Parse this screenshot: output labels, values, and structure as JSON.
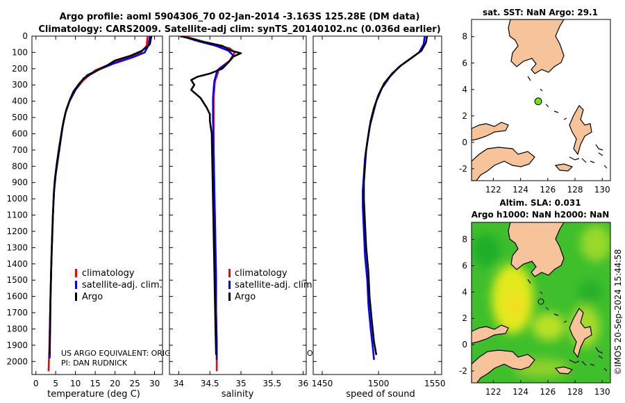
{
  "header": {
    "line1": "Argo profile: aoml 5904306_70 02-Jan-2014 -3.163S 125.28E (DM data)",
    "line2": "Climatology: CARS2009. Satellite-adj clim: synTS_20140102.nc (0.036d earlier)"
  },
  "colors": {
    "climatology": "#ff0000",
    "satellite": "#0000ff",
    "argo": "#000000",
    "land": "#f7c39a",
    "marker": "#77dd22"
  },
  "legend": {
    "climatology": "climatology",
    "satellite": "satellite-adj. clim.",
    "argo": "Argo"
  },
  "notes": {
    "line1": "US ARGO EQUIVALENT: ORIGI",
    "line2": "PI: DAN RUDNICK",
    "frag": "O"
  },
  "stamp": "©IMOS 20-Sep-2024 15:44:58",
  "chart_data": [
    {
      "type": "line",
      "id": "temperature",
      "xlabel": "temperature (deg C)",
      "ylabel": "",
      "xlim": [
        -1,
        32
      ],
      "ylim": [
        2080,
        0
      ],
      "xticks": [
        0,
        5,
        10,
        15,
        20,
        25,
        30
      ],
      "yticks": [
        0,
        100,
        200,
        300,
        400,
        500,
        600,
        700,
        800,
        900,
        1000,
        1100,
        1200,
        1300,
        1400,
        1500,
        1600,
        1700,
        1800,
        1900,
        2000
      ],
      "series": [
        {
          "name": "climatology",
          "color": "#ff0000",
          "points": [
            [
              28.2,
              0
            ],
            [
              28.0,
              60
            ],
            [
              26.5,
              100
            ],
            [
              24,
              130
            ],
            [
              19,
              170
            ],
            [
              15,
              210
            ],
            [
              12,
              270
            ],
            [
              10,
              330
            ],
            [
              8.5,
              400
            ],
            [
              7.5,
              470
            ],
            [
              6.8,
              550
            ],
            [
              6.2,
              650
            ],
            [
              5.6,
              750
            ],
            [
              5.0,
              850
            ],
            [
              4.6,
              950
            ],
            [
              4.3,
              1100
            ],
            [
              4.0,
              1300
            ],
            [
              3.8,
              1500
            ],
            [
              3.6,
              1700
            ],
            [
              3.4,
              1900
            ],
            [
              3.2,
              2060
            ]
          ]
        },
        {
          "name": "satellite-adj. clim.",
          "color": "#0000ff",
          "points": [
            [
              28.8,
              0
            ],
            [
              28.4,
              60
            ],
            [
              27.5,
              100
            ],
            [
              24.5,
              130
            ],
            [
              19.5,
              170
            ],
            [
              16,
              205
            ],
            [
              12,
              260
            ],
            [
              10,
              330
            ],
            [
              8.5,
              400
            ],
            [
              7.5,
              470
            ],
            [
              6.8,
              550
            ],
            [
              6.2,
              650
            ],
            [
              5.6,
              750
            ],
            [
              5.0,
              850
            ],
            [
              4.6,
              950
            ],
            [
              4.3,
              1100
            ],
            [
              4.0,
              1300
            ],
            [
              3.8,
              1500
            ],
            [
              3.6,
              1700
            ],
            [
              3.5,
              1900
            ],
            [
              3.5,
              1980
            ]
          ]
        },
        {
          "name": "Argo",
          "color": "#000000",
          "points": [
            [
              29.2,
              0
            ],
            [
              28.8,
              50
            ],
            [
              26.8,
              90
            ],
            [
              24,
              120
            ],
            [
              20,
              150
            ],
            [
              18,
              180
            ],
            [
              15.5,
              210
            ],
            [
              13,
              240
            ],
            [
              11,
              290
            ],
            [
              9.5,
              340
            ],
            [
              8.6,
              390
            ],
            [
              7.7,
              450
            ],
            [
              7.0,
              520
            ],
            [
              6.5,
              590
            ],
            [
              5.9,
              680
            ],
            [
              5.3,
              780
            ],
            [
              4.8,
              880
            ],
            [
              4.5,
              980
            ],
            [
              4.3,
              1100
            ],
            [
              4.1,
              1250
            ],
            [
              3.9,
              1400
            ],
            [
              3.7,
              1600
            ],
            [
              3.6,
              1800
            ],
            [
              3.5,
              1960
            ]
          ]
        }
      ]
    },
    {
      "type": "line",
      "id": "salinity",
      "xlabel": "salinity",
      "ylabel": "",
      "xlim": [
        33.85,
        36.05
      ],
      "ylim": [
        2080,
        0
      ],
      "xticks": [
        34,
        34.5,
        35,
        35.5,
        36
      ],
      "series": [
        {
          "name": "climatology",
          "color": "#ff0000",
          "points": [
            [
              34.08,
              0
            ],
            [
              34.45,
              40
            ],
            [
              34.82,
              75
            ],
            [
              34.9,
              100
            ],
            [
              34.82,
              150
            ],
            [
              34.65,
              200
            ],
            [
              34.58,
              280
            ],
            [
              34.56,
              380
            ],
            [
              34.56,
              500
            ],
            [
              34.56,
              700
            ],
            [
              34.57,
              900
            ],
            [
              34.58,
              1100
            ],
            [
              34.59,
              1300
            ],
            [
              34.6,
              1500
            ],
            [
              34.6,
              1700
            ],
            [
              34.61,
              1900
            ],
            [
              34.61,
              2060
            ]
          ]
        },
        {
          "name": "satellite-adj. clim.",
          "color": "#0000ff",
          "points": [
            [
              34.05,
              0
            ],
            [
              34.3,
              30
            ],
            [
              34.6,
              60
            ],
            [
              34.8,
              90
            ],
            [
              34.88,
              120
            ],
            [
              34.8,
              160
            ],
            [
              34.62,
              210
            ],
            [
              34.57,
              280
            ],
            [
              34.55,
              380
            ],
            [
              34.55,
              500
            ],
            [
              34.56,
              700
            ],
            [
              34.57,
              900
            ],
            [
              34.58,
              1100
            ],
            [
              34.59,
              1300
            ],
            [
              34.6,
              1500
            ],
            [
              34.6,
              1700
            ],
            [
              34.61,
              1900
            ],
            [
              34.61,
              1990
            ]
          ]
        },
        {
          "name": "Argo",
          "color": "#000000",
          "points": [
            [
              34.02,
              0
            ],
            [
              34.2,
              15
            ],
            [
              34.4,
              35
            ],
            [
              34.7,
              60
            ],
            [
              34.85,
              90
            ],
            [
              35.0,
              105
            ],
            [
              34.88,
              125
            ],
            [
              34.8,
              160
            ],
            [
              34.7,
              200
            ],
            [
              34.5,
              230
            ],
            [
              34.3,
              250
            ],
            [
              34.2,
              270
            ],
            [
              34.25,
              300
            ],
            [
              34.2,
              330
            ],
            [
              34.35,
              380
            ],
            [
              34.45,
              440
            ],
            [
              34.5,
              480
            ],
            [
              34.5,
              520
            ],
            [
              34.53,
              600
            ],
            [
              34.54,
              800
            ],
            [
              34.55,
              1000
            ],
            [
              34.56,
              1200
            ],
            [
              34.57,
              1400
            ],
            [
              34.58,
              1600
            ],
            [
              34.59,
              1800
            ],
            [
              34.6,
              1960
            ]
          ]
        }
      ]
    },
    {
      "type": "line",
      "id": "sound",
      "xlabel": "speed of sound",
      "ylabel": "",
      "xlim": [
        1442,
        1556
      ],
      "ylim": [
        2080,
        0
      ],
      "xticks": [
        1450,
        1500,
        1550
      ],
      "series": [
        {
          "name": "satellite-adj. clim.",
          "color": "#0000ff",
          "points": [
            [
              1541,
              0
            ],
            [
              1540,
              50
            ],
            [
              1536,
              100
            ],
            [
              1528,
              140
            ],
            [
              1518,
              190
            ],
            [
              1510,
              250
            ],
            [
              1503,
              320
            ],
            [
              1498,
              400
            ],
            [
              1495,
              480
            ],
            [
              1492,
              560
            ],
            [
              1490,
              650
            ],
            [
              1488,
              750
            ],
            [
              1487,
              850
            ],
            [
              1486,
              950
            ],
            [
              1486,
              1050
            ],
            [
              1487,
              1200
            ],
            [
              1488,
              1350
            ],
            [
              1490,
              1500
            ],
            [
              1491,
              1650
            ],
            [
              1493,
              1800
            ],
            [
              1495,
              1920
            ],
            [
              1496,
              1990
            ]
          ]
        },
        {
          "name": "Argo",
          "color": "#000000",
          "points": [
            [
              1543,
              0
            ],
            [
              1542,
              40
            ],
            [
              1538,
              90
            ],
            [
              1530,
              130
            ],
            [
              1520,
              180
            ],
            [
              1512,
              230
            ],
            [
              1505,
              290
            ],
            [
              1500,
              360
            ],
            [
              1496,
              440
            ],
            [
              1493,
              520
            ],
            [
              1491,
              610
            ],
            [
              1489,
              700
            ],
            [
              1488,
              800
            ],
            [
              1487,
              900
            ],
            [
              1487,
              1000
            ],
            [
              1488,
              1150
            ],
            [
              1489,
              1300
            ],
            [
              1491,
              1450
            ],
            [
              1492,
              1600
            ],
            [
              1494,
              1750
            ],
            [
              1496,
              1880
            ],
            [
              1498,
              1960
            ]
          ]
        }
      ]
    },
    {
      "type": "map",
      "id": "sst",
      "title": "sat. SST: NaN Argo: 29.1",
      "xlim": [
        120.4,
        130.6
      ],
      "ylim": [
        -2.9,
        9.3
      ],
      "xticks": [
        122,
        124,
        126,
        128,
        130
      ],
      "yticks": [
        -2,
        0,
        2,
        4,
        6,
        8
      ],
      "marker": {
        "lon": 125.3,
        "lat": 3.1
      }
    },
    {
      "type": "map",
      "id": "sla",
      "title1": "Altim. SLA: 0.031",
      "title2": "Argo h1000: NaN h2000: NaN",
      "xlim": [
        120.4,
        130.6
      ],
      "ylim": [
        -2.9,
        9.3
      ],
      "xticks": [
        122,
        124,
        126,
        128,
        130
      ],
      "yticks": [
        -2,
        0,
        2,
        4,
        6,
        8
      ]
    }
  ]
}
